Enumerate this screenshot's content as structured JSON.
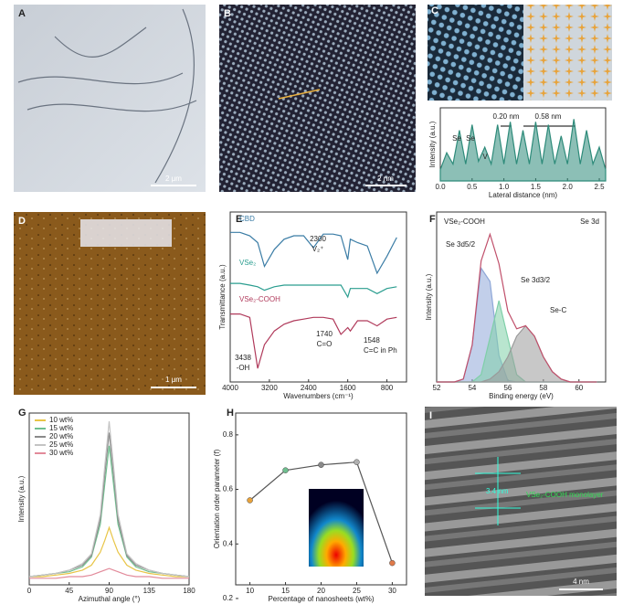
{
  "panels": [
    {
      "label": "A",
      "scale_bar": "2 μm"
    },
    {
      "label": "B",
      "scale_bar": "2 nm"
    },
    {
      "label": "D",
      "scale_bar": "1 μm"
    },
    {
      "label": "I",
      "scale_bar": "4 nm",
      "annotations": [
        "3.4 nm",
        "VSe₂-COOH monolayer"
      ]
    }
  ],
  "chart_data": [
    {
      "label": "C",
      "type": "line",
      "xlabel": "Lateral distance (nm)",
      "ylabel": "Intensity (a.u.)",
      "x": [
        0,
        0.1,
        0.2,
        0.3,
        0.4,
        0.5,
        0.6,
        0.7,
        0.8,
        0.9,
        1.0,
        1.1,
        1.2,
        1.3,
        1.4,
        1.5,
        1.6,
        1.7,
        1.8,
        1.9,
        2.0,
        2.1,
        2.2,
        2.3,
        2.4,
        2.5,
        2.6
      ],
      "series": [
        {
          "color": "#2e8b7a",
          "values": [
            0.2,
            0.5,
            0.3,
            0.9,
            0.3,
            1.0,
            0.35,
            0.6,
            0.3,
            1.0,
            0.3,
            1.05,
            0.3,
            0.9,
            0.3,
            1.05,
            0.3,
            1.0,
            0.3,
            0.8,
            0.3,
            1.1,
            0.3,
            0.9,
            0.3,
            0.6,
            0.2
          ]
        }
      ],
      "xlim": [
        0,
        2.6
      ],
      "xticks": [
        {
          "value": 0,
          "label": "0.0"
        },
        0.5,
        {
          "value": 1,
          "label": "1.0"
        },
        1.5,
        {
          "value": 2,
          "label": "2.0"
        },
        2.5
      ],
      "ylim": [
        0,
        1.3
      ],
      "fill": true,
      "annotations": [
        "Se",
        "Se",
        "V",
        "0.20 nm",
        "0.58 nm"
      ]
    },
    {
      "label": "E",
      "type": "line",
      "xlabel": "Wavenumbers (cm⁻¹)",
      "ylabel": "Transmittance (a.u.)",
      "x": [
        4000,
        3800,
        3600,
        3438,
        3300,
        3100,
        2900,
        2700,
        2500,
        2300,
        2100,
        1900,
        1740,
        1600,
        1548,
        1400,
        1200,
        1000,
        800,
        600
      ],
      "series": [
        {
          "name": "CBD",
          "color": "#3a7ca5",
          "values": [
            0.88,
            0.88,
            0.86,
            0.82,
            0.68,
            0.78,
            0.84,
            0.86,
            0.86,
            0.79,
            0.87,
            0.87,
            0.86,
            0.72,
            0.84,
            0.82,
            0.8,
            0.64,
            0.74,
            0.85
          ]
        },
        {
          "name": "VSe₂",
          "color": "#2a9d8f",
          "values": [
            0.58,
            0.58,
            0.57,
            0.56,
            0.54,
            0.56,
            0.57,
            0.57,
            0.57,
            0.57,
            0.57,
            0.57,
            0.57,
            0.5,
            0.55,
            0.55,
            0.55,
            0.52,
            0.55,
            0.56
          ]
        },
        {
          "name": "VSe₂-COOH",
          "color": "#b03a5b",
          "values": [
            0.4,
            0.4,
            0.38,
            0.08,
            0.22,
            0.3,
            0.34,
            0.36,
            0.37,
            0.38,
            0.38,
            0.37,
            0.28,
            0.32,
            0.3,
            0.36,
            0.36,
            0.33,
            0.37,
            0.38
          ]
        }
      ],
      "xlim": [
        4000,
        400
      ],
      "xticks": [
        4000,
        3200,
        2400,
        1600,
        800
      ],
      "ylim": [
        0,
        1
      ],
      "legend": "inline",
      "annotations": [
        "2300",
        "V₂⁺",
        "3438",
        "-OH",
        "1740",
        "C=O",
        "1548",
        "C=C in Ph"
      ]
    },
    {
      "label": "F",
      "type": "area",
      "xlabel": "Binding energy (eV)",
      "ylabel": "Intensity (a.u.)",
      "x": [
        52,
        52.5,
        53,
        53.5,
        54,
        54.5,
        55,
        55.5,
        56,
        56.5,
        57,
        57.5,
        58,
        58.5,
        59,
        59.5,
        60,
        60.5,
        61
      ],
      "series": [
        {
          "name": "Se 3d5/2",
          "color": "#8fa8d8",
          "values": [
            0,
            0,
            0,
            0.02,
            0.25,
            0.77,
            0.68,
            0.18,
            0.01,
            0,
            0,
            0,
            0,
            0,
            0,
            0,
            0,
            0,
            0
          ]
        },
        {
          "name": "Se 3d3/2",
          "color": "#7fcfa8",
          "values": [
            0,
            0,
            0,
            0,
            0,
            0.05,
            0.3,
            0.55,
            0.3,
            0.05,
            0,
            0,
            0,
            0,
            0,
            0,
            0,
            0,
            0
          ]
        },
        {
          "name": "Se-C",
          "color": "#9a9a9a",
          "values": [
            0,
            0,
            0,
            0,
            0,
            0,
            0.02,
            0.07,
            0.17,
            0.31,
            0.38,
            0.31,
            0.17,
            0.07,
            0.02,
            0,
            0,
            0,
            0
          ]
        },
        {
          "color": "#c0506b",
          "values": [
            0,
            0,
            0,
            0.02,
            0.25,
            0.82,
            1.0,
            0.8,
            0.48,
            0.36,
            0.38,
            0.31,
            0.17,
            0.07,
            0.02,
            0,
            0,
            0,
            0
          ]
        }
      ],
      "xlim": [
        52,
        61.5
      ],
      "xticks": [
        52,
        54,
        56,
        58,
        60
      ],
      "ylim": [
        0,
        1.15
      ],
      "legend": "inline",
      "annotations": [
        "VSe₂-COOH",
        "Se 3d"
      ]
    },
    {
      "label": "G",
      "type": "line",
      "xlabel": "Azimuthal angle (°)",
      "ylabel": "Intensity (a.u.)",
      "x": [
        0,
        15,
        30,
        45,
        60,
        70,
        80,
        85,
        90,
        95,
        100,
        110,
        120,
        135,
        150,
        165,
        180
      ],
      "series": [
        {
          "name": "10 wt%",
          "color": "#e8c547",
          "values": [
            0.05,
            0.05,
            0.06,
            0.07,
            0.09,
            0.12,
            0.2,
            0.27,
            0.35,
            0.27,
            0.2,
            0.12,
            0.09,
            0.07,
            0.06,
            0.05,
            0.05
          ]
        },
        {
          "name": "15 wt%",
          "color": "#6fbf8f",
          "values": [
            0.05,
            0.06,
            0.07,
            0.08,
            0.11,
            0.17,
            0.37,
            0.61,
            0.85,
            0.61,
            0.37,
            0.17,
            0.11,
            0.08,
            0.07,
            0.06,
            0.05
          ]
        },
        {
          "name": "20 wt%",
          "color": "#8a8a8a",
          "values": [
            0.05,
            0.06,
            0.07,
            0.09,
            0.12,
            0.18,
            0.4,
            0.67,
            0.93,
            0.67,
            0.4,
            0.18,
            0.12,
            0.09,
            0.07,
            0.06,
            0.05
          ]
        },
        {
          "name": "25 wt%",
          "color": "#c4c4c4",
          "values": [
            0.05,
            0.06,
            0.07,
            0.09,
            0.13,
            0.19,
            0.43,
            0.72,
            1.0,
            0.72,
            0.43,
            0.19,
            0.13,
            0.09,
            0.07,
            0.06,
            0.05
          ]
        },
        {
          "name": "30 wt%",
          "color": "#e28a9a",
          "values": [
            0.04,
            0.04,
            0.04,
            0.05,
            0.05,
            0.06,
            0.08,
            0.09,
            0.1,
            0.09,
            0.08,
            0.06,
            0.05,
            0.05,
            0.04,
            0.04,
            0.04
          ]
        }
      ],
      "xlim": [
        0,
        180
      ],
      "xticks": [
        0,
        45,
        90,
        135,
        180
      ],
      "ylim": [
        0,
        1.05
      ],
      "legend": "upper left"
    },
    {
      "label": "H",
      "type": "line",
      "xlabel": "Percentage of nanosheets (wt%)",
      "ylabel": "Orientation order parameter (f)",
      "x": [
        10,
        15,
        20,
        25,
        30
      ],
      "series": [
        {
          "color": "#555555",
          "values": [
            0.56,
            0.67,
            0.69,
            0.7,
            0.33
          ]
        }
      ],
      "point_colors": [
        "#e8a23a",
        "#6fbf8f",
        "#8a8a8a",
        "#b0b0b0",
        "#e07a4a"
      ],
      "markers": true,
      "xlim": [
        8,
        32
      ],
      "xticks": [
        10,
        15,
        20,
        25,
        30
      ],
      "ylim": [
        0.25,
        0.88
      ],
      "yticks": [
        0.2,
        0.4,
        0.6,
        0.8
      ]
    }
  ]
}
